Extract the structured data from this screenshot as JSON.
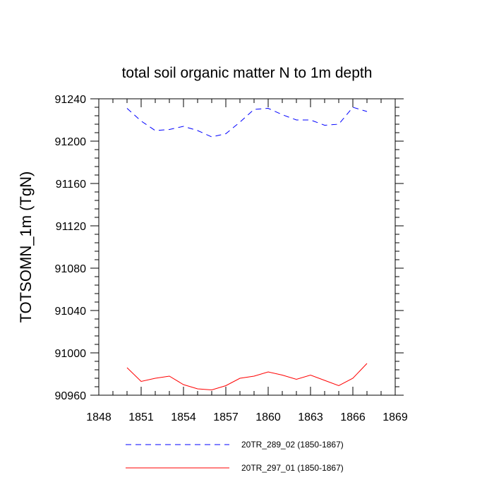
{
  "chart_data": {
    "type": "line",
    "title": "total soil organic matter N to 1m depth",
    "ylabel": "TOTSOMN_1m  (TgN)",
    "xlabel": "",
    "xlim": [
      1848,
      1869
    ],
    "ylim": [
      90960,
      91240
    ],
    "x_ticks": [
      1848,
      1851,
      1854,
      1857,
      1860,
      1863,
      1866,
      1869
    ],
    "y_ticks": [
      90960,
      91000,
      91040,
      91080,
      91120,
      91160,
      91200,
      91240
    ],
    "x_tick_labels": [
      "1848",
      "1851",
      "1854",
      "1857",
      "1860",
      "1863",
      "1866",
      "1869"
    ],
    "y_tick_labels": [
      "90960",
      "91000",
      "91040",
      "91080",
      "91120",
      "91160",
      "91200",
      "91240"
    ],
    "x": [
      1850,
      1851,
      1852,
      1853,
      1854,
      1855,
      1856,
      1857,
      1858,
      1859,
      1860,
      1861,
      1862,
      1863,
      1864,
      1865,
      1866,
      1867
    ],
    "series": [
      {
        "name": "20TR_289_02 (1850-1867)",
        "color": "#0000ff",
        "dash": "dashed",
        "values": [
          91231,
          91219,
          91210,
          91211,
          91214,
          91210,
          91204,
          91207,
          91218,
          91230,
          91231,
          91225,
          91220,
          91220,
          91215,
          91216,
          91232,
          91228
        ]
      },
      {
        "name": "20TR_297_01 (1850-1867)",
        "color": "#ff0000",
        "dash": "solid",
        "values": [
          90986,
          90973,
          90976,
          90978,
          90970,
          90966,
          90965,
          90969,
          90976,
          90978,
          90982,
          90979,
          90975,
          90979,
          90974,
          90969,
          90976,
          90990
        ]
      }
    ],
    "legend_position": "bottom"
  }
}
